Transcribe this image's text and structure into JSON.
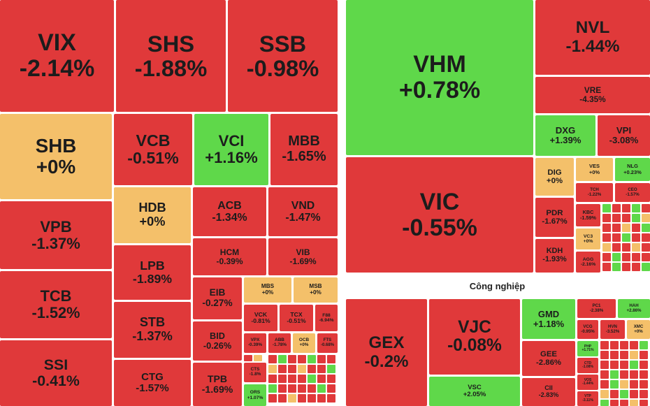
{
  "chart_data": {
    "type": "treemap",
    "groups": [
      {
        "tiles": [
          {
            "name": "VIX",
            "value": -2.14,
            "value_label": "-2.14%"
          },
          {
            "name": "SHS",
            "value": -1.88,
            "value_label": "-1.88%"
          },
          {
            "name": "SSB",
            "value": -0.98,
            "value_label": "-0.98%"
          },
          {
            "name": "SHB",
            "value": 0,
            "value_label": "+0%"
          },
          {
            "name": "VCB",
            "value": -0.51,
            "value_label": "-0.51%"
          },
          {
            "name": "VCI",
            "value": 1.16,
            "value_label": "+1.16%"
          },
          {
            "name": "MBB",
            "value": -1.65,
            "value_label": "-1.65%"
          },
          {
            "name": "VPB",
            "value": -1.37,
            "value_label": "-1.37%"
          },
          {
            "name": "HDB",
            "value": 0,
            "value_label": "+0%"
          },
          {
            "name": "ACB",
            "value": -1.34,
            "value_label": "-1.34%"
          },
          {
            "name": "VND",
            "value": -1.47,
            "value_label": "-1.47%"
          },
          {
            "name": "HCM",
            "value": -0.39,
            "value_label": "-0.39%"
          },
          {
            "name": "VIB",
            "value": -1.69,
            "value_label": "-1.69%"
          },
          {
            "name": "LPB",
            "value": -1.89,
            "value_label": "-1.89%"
          },
          {
            "name": "TCB",
            "value": -1.52,
            "value_label": "-1.52%"
          },
          {
            "name": "EIB",
            "value": -0.27,
            "value_label": "-0.27%"
          },
          {
            "name": "MBS",
            "value": 0,
            "value_label": "+0%"
          },
          {
            "name": "MSB",
            "value": 0,
            "value_label": "+0%"
          },
          {
            "name": "VCK",
            "value": -0.81,
            "value_label": "-0.81%"
          },
          {
            "name": "TCX",
            "value": -0.51,
            "value_label": "-0.51%"
          },
          {
            "name": "F88",
            "value": -6.94,
            "value_label": "-6.94%"
          },
          {
            "name": "STB",
            "value": -1.37,
            "value_label": "-1.37%"
          },
          {
            "name": "BID",
            "value": -0.26,
            "value_label": "-0.26%"
          },
          {
            "name": "SSI",
            "value": -0.41,
            "value_label": "-0.41%"
          },
          {
            "name": "CTG",
            "value": -1.57,
            "value_label": "-1.57%"
          },
          {
            "name": "TPB",
            "value": -1.69,
            "value_label": "-1.69%"
          },
          {
            "name": "VPX",
            "value": -0.39,
            "value_label": "-0.39%"
          },
          {
            "name": "ABB",
            "value": -1.78,
            "value_label": "-1.78%"
          },
          {
            "name": "OCB",
            "value": 0,
            "value_label": "+0%"
          },
          {
            "name": "FTS",
            "value": -0.68,
            "value_label": "-0.68%"
          },
          {
            "name": "CTS",
            "value": -1.8,
            "value_label": "-1.8%"
          },
          {
            "name": "ORS",
            "value": 1.07,
            "value_label": "+1.07%"
          }
        ]
      },
      {
        "tiles": [
          {
            "name": "VHM",
            "value": 0.78,
            "value_label": "+0.78%"
          },
          {
            "name": "NVL",
            "value": -1.44,
            "value_label": "-1.44%"
          },
          {
            "name": "VRE",
            "value": -4.35,
            "value_label": "-4.35%"
          },
          {
            "name": "DXG",
            "value": 1.39,
            "value_label": "+1.39%"
          },
          {
            "name": "VPI",
            "value": -3.08,
            "value_label": "-3.08%"
          },
          {
            "name": "VIC",
            "value": -0.55,
            "value_label": "-0.55%"
          },
          {
            "name": "DIG",
            "value": 0,
            "value_label": "+0%"
          },
          {
            "name": "VES",
            "value": 0,
            "value_label": "+0%"
          },
          {
            "name": "NLG",
            "value": 0.23,
            "value_label": "+0.23%"
          },
          {
            "name": "TCH",
            "value": -1.22,
            "value_label": "-1.22%"
          },
          {
            "name": "CEO",
            "value": -1.57,
            "value_label": "-1.57%"
          },
          {
            "name": "PDR",
            "value": -1.67,
            "value_label": "-1.67%"
          },
          {
            "name": "KBC",
            "value": -1.59,
            "value_label": "-1.59%"
          },
          {
            "name": "KDH",
            "value": -1.93,
            "value_label": "-1.93%"
          },
          {
            "name": "VC3",
            "value": 0,
            "value_label": "+0%"
          },
          {
            "name": "AGG",
            "value": -2.16,
            "value_label": "-2.16%"
          }
        ]
      },
      {
        "name": "Công nghiệp",
        "tiles": [
          {
            "name": "GEX",
            "value": -0.2,
            "value_label": "-0.2%"
          },
          {
            "name": "VJC",
            "value": -0.08,
            "value_label": "-0.08%"
          },
          {
            "name": "VSC",
            "value": 2.05,
            "value_label": "+2.05%"
          },
          {
            "name": "GMD",
            "value": 1.18,
            "value_label": "+1.18%"
          },
          {
            "name": "PC1",
            "value": -2.38,
            "value_label": "-2.38%"
          },
          {
            "name": "HAH",
            "value": 2.86,
            "value_label": "+2.86%"
          },
          {
            "name": "VCG",
            "value": -0.95,
            "value_label": "-0.95%"
          },
          {
            "name": "HVN",
            "value": -3.52,
            "value_label": "-3.52%"
          },
          {
            "name": "XMC",
            "value": 0,
            "value_label": "+0%"
          },
          {
            "name": "GEE",
            "value": -2.86,
            "value_label": "-2.86%"
          },
          {
            "name": "CII",
            "value": -2.83,
            "value_label": "-2.83%"
          },
          {
            "name": "PHP",
            "value": 1.71,
            "value_label": "+1.71%"
          },
          {
            "name": "CTD",
            "value": -1.08,
            "value_label": "-1.08%"
          },
          {
            "name": "VOS",
            "value": -1.44,
            "value_label": "-1.44%"
          },
          {
            "name": "VTP",
            "value": -3.11,
            "value_label": "-3.11%"
          }
        ]
      }
    ]
  }
}
